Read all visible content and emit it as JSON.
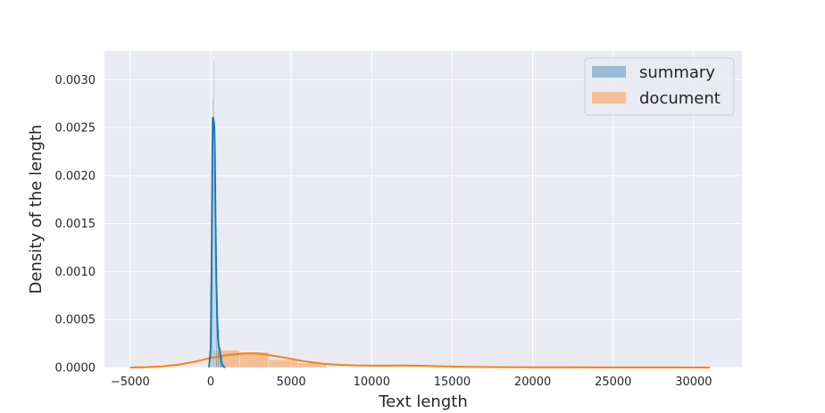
{
  "chart_data": {
    "type": "histogram+kde",
    "title": "",
    "xlabel": "Text length",
    "ylabel": "Density of the length",
    "xlim": [
      -6600,
      33000
    ],
    "ylim": [
      0,
      0.0033
    ],
    "xticks": [
      -5000,
      0,
      5000,
      10000,
      15000,
      20000,
      25000,
      30000
    ],
    "xtick_labels": [
      "−5000",
      "0",
      "5000",
      "10000",
      "15000",
      "20000",
      "25000",
      "30000"
    ],
    "yticks": [
      0,
      0.0005,
      0.001,
      0.0015,
      0.002,
      0.0025,
      0.003
    ],
    "ytick_labels": [
      "0.0000",
      "0.0005",
      "0.0010",
      "0.0015",
      "0.0020",
      "0.0025",
      "0.0030"
    ],
    "grid": true,
    "legend_position": "top-right",
    "series": [
      {
        "name": "summary",
        "color": "#1f77b4",
        "hist": [
          {
            "x0": 0,
            "x1": 60,
            "y": 0.0006
          },
          {
            "x0": 60,
            "x1": 120,
            "y": 0.0022
          },
          {
            "x0": 120,
            "x1": 180,
            "y": 0.0028
          },
          {
            "x0": 180,
            "x1": 240,
            "y": 0.0032
          },
          {
            "x0": 240,
            "x1": 300,
            "y": 0.0024
          },
          {
            "x0": 300,
            "x1": 400,
            "y": 0.0011
          },
          {
            "x0": 400,
            "x1": 550,
            "y": 0.0004
          },
          {
            "x0": 550,
            "x1": 750,
            "y": 0.00012
          }
        ],
        "kde": {
          "x": [
            -100,
            0,
            50,
            100,
            130,
            160,
            200,
            230,
            260,
            300,
            350,
            400,
            450,
            500,
            550,
            600,
            650,
            700,
            800,
            900
          ],
          "y": [
            0.0,
            0.0002,
            0.001,
            0.0022,
            0.0026,
            0.0026,
            0.00255,
            0.0025,
            0.0022,
            0.0015,
            0.0009,
            0.00055,
            0.0003,
            0.00022,
            0.0002,
            0.00013,
            8e-05,
            4e-05,
            1e-05,
            0.0
          ]
        }
      },
      {
        "name": "document",
        "color": "#ff7f0e",
        "hist": [
          {
            "x0": 100,
            "x1": 1800,
            "y": 0.00018
          },
          {
            "x0": 1800,
            "x1": 3600,
            "y": 0.00016
          },
          {
            "x0": 3600,
            "x1": 5400,
            "y": 8e-05
          },
          {
            "x0": 5400,
            "x1": 7200,
            "y": 5e-05
          }
        ],
        "kde": {
          "x": [
            -5000,
            -4000,
            -3000,
            -2000,
            -1000,
            0,
            1000,
            2000,
            2500,
            3000,
            4000,
            5000,
            6000,
            7000,
            8000,
            9000,
            10000,
            11000,
            12000,
            13000,
            14000,
            15000,
            16000,
            18000,
            20000,
            22000,
            24000,
            26000,
            28000,
            30000,
            31000
          ],
          "y": [
            0.0,
            4e-06,
            1.2e-05,
            3e-05,
            6e-05,
            0.0001,
            0.00013,
            0.000145,
            0.000148,
            0.000145,
            0.00012,
            9e-05,
            6e-05,
            4e-05,
            2.8e-05,
            2.2e-05,
            2e-05,
            2e-05,
            2.1e-05,
            1.9e-05,
            1.4e-05,
            1e-05,
            7e-06,
            4e-06,
            2e-06,
            2e-06,
            1e-06,
            1e-06,
            1e-06,
            5e-07,
            0.0
          ]
        }
      }
    ]
  }
}
